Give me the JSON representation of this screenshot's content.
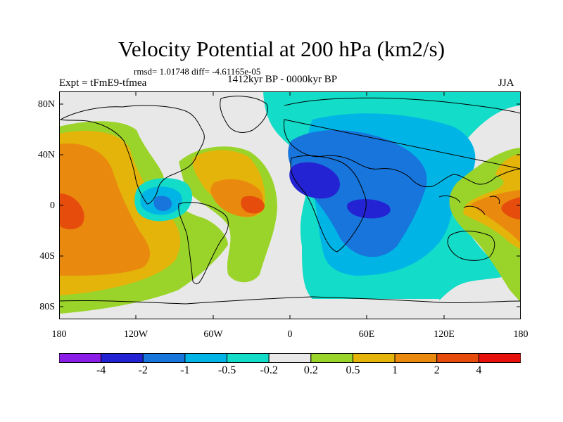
{
  "title": "Velocity Potential at 200 hPa (km2/s)",
  "stats": "rmsd= 1.01748 diff= -4.61165e-05",
  "expt": "Expt = tFmE9-tfmea",
  "period": "1412kyr BP - 0000kyr BP",
  "season": "JJA",
  "lat_labels": [
    "80N",
    "40N",
    "0",
    "40S",
    "80S"
  ],
  "lon_labels": [
    "180",
    "120W",
    "60W",
    "0",
    "60E",
    "120E",
    "180"
  ],
  "colorbar": {
    "labels": [
      "-4",
      "-2",
      "-1",
      "-0.5",
      "-0.2",
      "0.2",
      "0.5",
      "1",
      "2",
      "4"
    ],
    "colors": [
      "#8a1ee6",
      "#2323d3",
      "#1775dc",
      "#00b5e6",
      "#13dcc8",
      "#e8e8e8",
      "#9ad42a",
      "#e4b40a",
      "#e98a0e",
      "#e64d0c",
      "#e8100c"
    ]
  },
  "map": {
    "projection": "cylindrical-equidistant",
    "lon_range": [
      -180,
      180
    ],
    "lat_range": [
      -90,
      90
    ],
    "background_level": "-0.2 to 0.2"
  }
}
